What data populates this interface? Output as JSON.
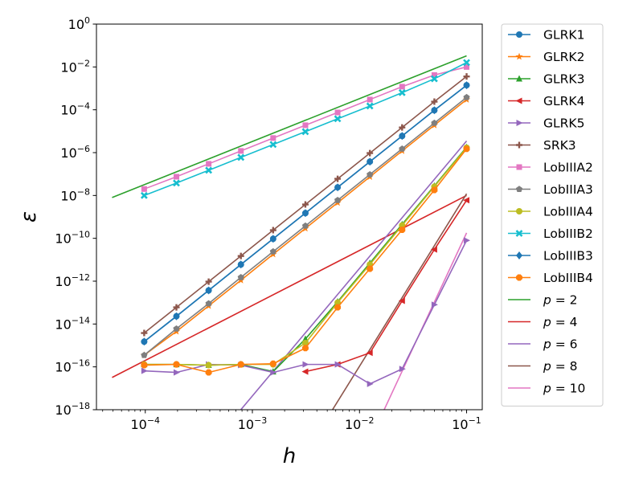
{
  "chart_data": {
    "type": "line",
    "xscale": "log",
    "yscale": "log",
    "xlim": [
      3.5e-05,
      0.14
    ],
    "ylim": [
      1e-18,
      1
    ],
    "xlabel": "h",
    "ylabel": "ε",
    "xticks": [
      {
        "value": 0.0001,
        "mant": "10",
        "exp": "−4"
      },
      {
        "value": 0.001,
        "mant": "10",
        "exp": "−3"
      },
      {
        "value": 0.01,
        "mant": "10",
        "exp": "−2"
      },
      {
        "value": 0.1,
        "mant": "10",
        "exp": "−1"
      }
    ],
    "yticks": [
      {
        "value": 1e-18,
        "mant": "10",
        "exp": "−18"
      },
      {
        "value": 1e-16,
        "mant": "10",
        "exp": "−16"
      },
      {
        "value": 1e-14,
        "mant": "10",
        "exp": "−14"
      },
      {
        "value": 1e-12,
        "mant": "10",
        "exp": "−12"
      },
      {
        "value": 1e-10,
        "mant": "10",
        "exp": "−10"
      },
      {
        "value": 1e-08,
        "mant": "10",
        "exp": "−8"
      },
      {
        "value": 1e-06,
        "mant": "10",
        "exp": "−6"
      },
      {
        "value": 0.0001,
        "mant": "10",
        "exp": "−4"
      },
      {
        "value": 0.01,
        "mant": "10",
        "exp": "−2"
      },
      {
        "value": 1,
        "mant": "10",
        "exp": "0"
      }
    ],
    "h": [
      9.766e-05,
      0.0001953,
      0.0003906,
      0.00078125,
      0.0015625,
      0.003125,
      0.00625,
      0.0125,
      0.025,
      0.05,
      0.1
    ],
    "series": [
      {
        "name": "GLRK1",
        "color": "#1f77b4",
        "marker": "circle",
        "y": [
          1.5e-15,
          2.3e-14,
          3.7e-13,
          6e-12,
          9.5e-11,
          1.5e-09,
          2.4e-08,
          3.8e-07,
          6e-06,
          9.5e-05,
          0.0014
        ]
      },
      {
        "name": "GLRK2",
        "color": "#ff7f0e",
        "marker": "star",
        "y": [
          3.5e-16,
          4.5e-15,
          7e-14,
          1.1e-12,
          1.8e-11,
          2.9e-10,
          4.6e-09,
          7.4e-08,
          1.2e-06,
          1.9e-05,
          0.0003
        ]
      },
      {
        "name": "GLRK3",
        "color": "#2ca02c",
        "marker": "triangle-up",
        "y": [
          1.3e-16,
          1.3e-16,
          1.2e-16,
          1.3e-16,
          6e-17,
          2e-15,
          1.1e-13,
          7e-12,
          4.5e-10,
          2.8e-08,
          1.8e-06
        ]
      },
      {
        "name": "GLRK4",
        "color": "#d62728",
        "marker": "triangle-left",
        "y": [
          null,
          null,
          null,
          null,
          null,
          6e-17,
          1.3e-16,
          4.5e-16,
          1.2e-13,
          3e-11,
          6e-09
        ]
      },
      {
        "name": "GLRK5",
        "color": "#9467bd",
        "marker": "triangle-right",
        "y": [
          6.5e-17,
          5.5e-17,
          1.3e-16,
          1.2e-16,
          5.5e-17,
          1.3e-16,
          1.3e-16,
          1.6e-17,
          8e-17,
          8e-14,
          8e-11
        ]
      },
      {
        "name": "SRK3",
        "color": "#8c564b",
        "marker": "plus",
        "y": [
          3.8e-15,
          6e-14,
          9.5e-13,
          1.5e-11,
          2.4e-10,
          3.8e-09,
          6e-08,
          9.5e-07,
          1.5e-05,
          0.00024,
          0.0036
        ]
      },
      {
        "name": "LobIIIA2",
        "color": "#e377c2",
        "marker": "square",
        "y": [
          2e-08,
          7.5e-08,
          3e-07,
          1.2e-06,
          4.8e-06,
          1.9e-05,
          7.5e-05,
          0.0003,
          0.0012,
          0.0042,
          0.01
        ]
      },
      {
        "name": "LobIIIA3",
        "color": "#7f7f7f",
        "marker": "pentagon",
        "y": [
          3.5e-16,
          6e-15,
          9e-14,
          1.5e-12,
          2.4e-11,
          3.8e-10,
          6e-09,
          9.5e-08,
          1.5e-06,
          2.4e-05,
          0.00038
        ]
      },
      {
        "name": "LobIIIA4",
        "color": "#bcbd22",
        "marker": "circle",
        "y": [
          1.3e-16,
          1.3e-16,
          1.2e-16,
          1.3e-16,
          1.3e-16,
          1.3e-15,
          1e-13,
          6e-12,
          4e-10,
          2.6e-08,
          1.7e-06
        ]
      },
      {
        "name": "LobIIIB2",
        "color": "#17becf",
        "marker": "x",
        "y": [
          1e-08,
          3.8e-08,
          1.5e-07,
          6e-07,
          2.4e-06,
          9.5e-06,
          3.8e-05,
          0.00015,
          0.00063,
          0.0028,
          0.016
        ]
      },
      {
        "name": "LobIIIB3",
        "color": "#1f77b4",
        "marker": "diamond",
        "y": [
          1.5e-15,
          2.3e-14,
          3.7e-13,
          6e-12,
          9.5e-11,
          1.5e-09,
          2.4e-08,
          3.8e-07,
          6e-06,
          9.5e-05,
          0.0014
        ]
      },
      {
        "name": "LobIIIB4",
        "color": "#ff7f0e",
        "marker": "octagon",
        "y": [
          1.2e-16,
          1.3e-16,
          5.5e-17,
          1.3e-16,
          1.4e-16,
          7.5e-16,
          6e-14,
          3.8e-12,
          2.5e-10,
          1.8e-08,
          1.5e-06
        ]
      }
    ],
    "reference_lines": [
      {
        "name": "p = 2",
        "p": "2",
        "color": "#2ca02c",
        "x": [
          4.9e-05,
          0.1
        ],
        "y": [
          8e-09,
          0.033
        ]
      },
      {
        "name": "p = 4",
        "p": "4",
        "color": "#d62728",
        "x": [
          4.9e-05,
          0.1
        ],
        "y": [
          3.2e-17,
          1e-08
        ]
      },
      {
        "name": "p = 6",
        "p": "6",
        "color": "#9467bd",
        "x": [
          0.00078,
          0.1
        ],
        "y": [
          1e-18,
          3.5e-06
        ]
      },
      {
        "name": "p = 8",
        "p": "8",
        "color": "#8c564b",
        "x": [
          0.0056,
          0.1
        ],
        "y": [
          1e-18,
          1.2e-08
        ]
      },
      {
        "name": "p = 10",
        "p": "10",
        "color": "#e377c2",
        "x": [
          0.017,
          0.1
        ],
        "y": [
          1e-18,
          1.8e-10
        ]
      }
    ]
  }
}
